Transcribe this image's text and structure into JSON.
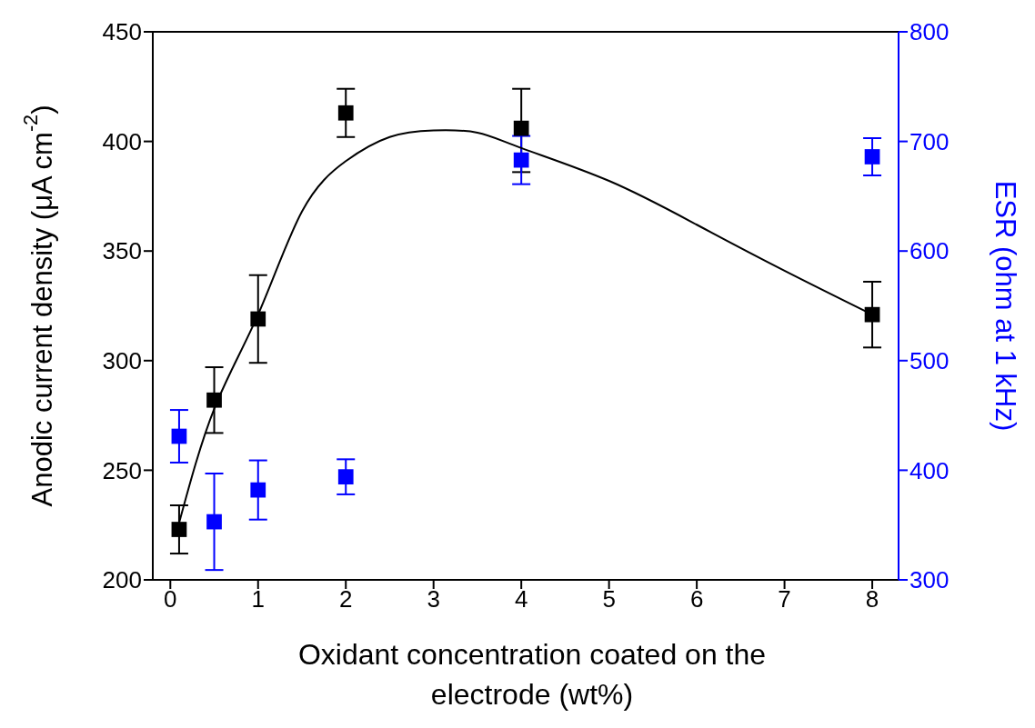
{
  "chart_data": {
    "type": "scatter",
    "xlabel": "Oxidant concentration coated on the electrode (wt%)",
    "ylabel": "Anodic current density (μA cm$^{-2}$)",
    "y2label": "ESR (ohm at 1 kHz)",
    "x": [
      0.1,
      0.5,
      1,
      2,
      4,
      8
    ],
    "series": [
      {
        "marker": "square",
        "color": "#000000",
        "values": [
          223,
          282,
          319,
          413,
          406,
          321
        ],
        "errors": [
          11,
          15,
          20,
          11,
          [
            386,
            424
          ],
          15
        ]
      },
      {
        "marker": "square",
        "axis": "y2",
        "color": "#0000ff",
        "values": [
          431,
          353,
          382,
          394,
          683,
          686
        ],
        "errors": [
          24,
          44,
          27,
          16,
          22,
          17
        ]
      },
      {
        "type": "line",
        "color": "#000000",
        "x": [
          0.1,
          0.5,
          1,
          1.5,
          2,
          2.5,
          3,
          3.5,
          4,
          5,
          6,
          7,
          8
        ],
        "values": [
          226,
          278,
          321,
          368,
          391,
          402,
          405,
          404,
          397,
          382,
          362,
          341,
          321
        ]
      }
    ],
    "xlim": [
      -0.2,
      8.3
    ],
    "xticks": [
      0,
      1,
      2,
      3,
      4,
      5,
      6,
      7,
      8
    ],
    "ylim": [
      200,
      450
    ],
    "yticks": [
      200,
      250,
      300,
      350,
      400,
      450
    ],
    "y2lim": [
      300,
      800
    ],
    "y2ticks": [
      300,
      400,
      500,
      600,
      700,
      800
    ],
    "line_style": "solid",
    "grid": false,
    "legend": false
  }
}
